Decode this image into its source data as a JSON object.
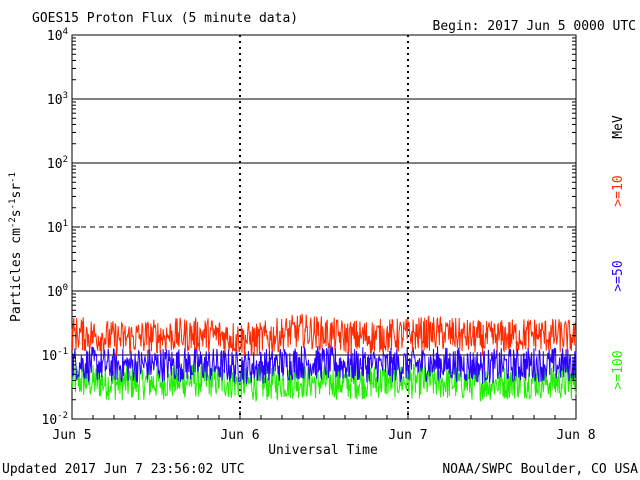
{
  "header": {
    "title": "GOES15 Proton Flux (5 minute data)",
    "begin": "Begin: 2017 Jun 5 0000 UTC"
  },
  "footer": {
    "updated": "Updated 2017 Jun  7 23:56:02 UTC",
    "source": "NOAA/SWPC Boulder, CO USA"
  },
  "chart_data": {
    "type": "line",
    "title": "GOES15 Proton Flux (5 minute data)",
    "xlabel": "Universal Time",
    "ylabel": "Particles cm^-2 s^-1 sr^-1",
    "y_scale": "log",
    "ylim": [
      0.01,
      10000
    ],
    "y_ticks": [
      {
        "base": "10",
        "exp": "-2",
        "value": 0.01
      },
      {
        "base": "10",
        "exp": "-1",
        "value": 0.1
      },
      {
        "base": "10",
        "exp": "0",
        "value": 1
      },
      {
        "base": "10",
        "exp": "1",
        "value": 10
      },
      {
        "base": "10",
        "exp": "2",
        "value": 100
      },
      {
        "base": "10",
        "exp": "3",
        "value": 1000
      },
      {
        "base": "10",
        "exp": "4",
        "value": 10000
      }
    ],
    "x_ticks": [
      "Jun 5",
      "Jun 6",
      "Jun 7",
      "Jun 8"
    ],
    "xlim": [
      "2017-06-05 00:00",
      "2017-06-08 00:00"
    ],
    "threshold_lines": [
      {
        "value": 1000,
        "style": "solid"
      },
      {
        "value": 100,
        "style": "solid"
      },
      {
        "value": 10,
        "style": "dashed"
      },
      {
        "value": 1,
        "style": "solid"
      },
      {
        "value": 0.1,
        "style": "solid"
      }
    ],
    "series": [
      {
        "name": ">=10",
        "color": "#ff2a00",
        "values": [
          0.22,
          0.18,
          0.2,
          0.21,
          0.17,
          0.24,
          0.19,
          0.2,
          0.22,
          0.18,
          0.21,
          0.19
        ]
      },
      {
        "name": ">=50",
        "color": "#2a00ff",
        "values": [
          0.075,
          0.068,
          0.072,
          0.07,
          0.065,
          0.078,
          0.071,
          0.069,
          0.074,
          0.066,
          0.072,
          0.07
        ]
      },
      {
        "name": ">=100",
        "color": "#22ee00",
        "values": [
          0.04,
          0.036,
          0.038,
          0.041,
          0.035,
          0.039,
          0.037,
          0.04,
          0.038,
          0.036,
          0.039,
          0.037
        ]
      }
    ],
    "legend_unit": "MeV",
    "grid": false
  }
}
